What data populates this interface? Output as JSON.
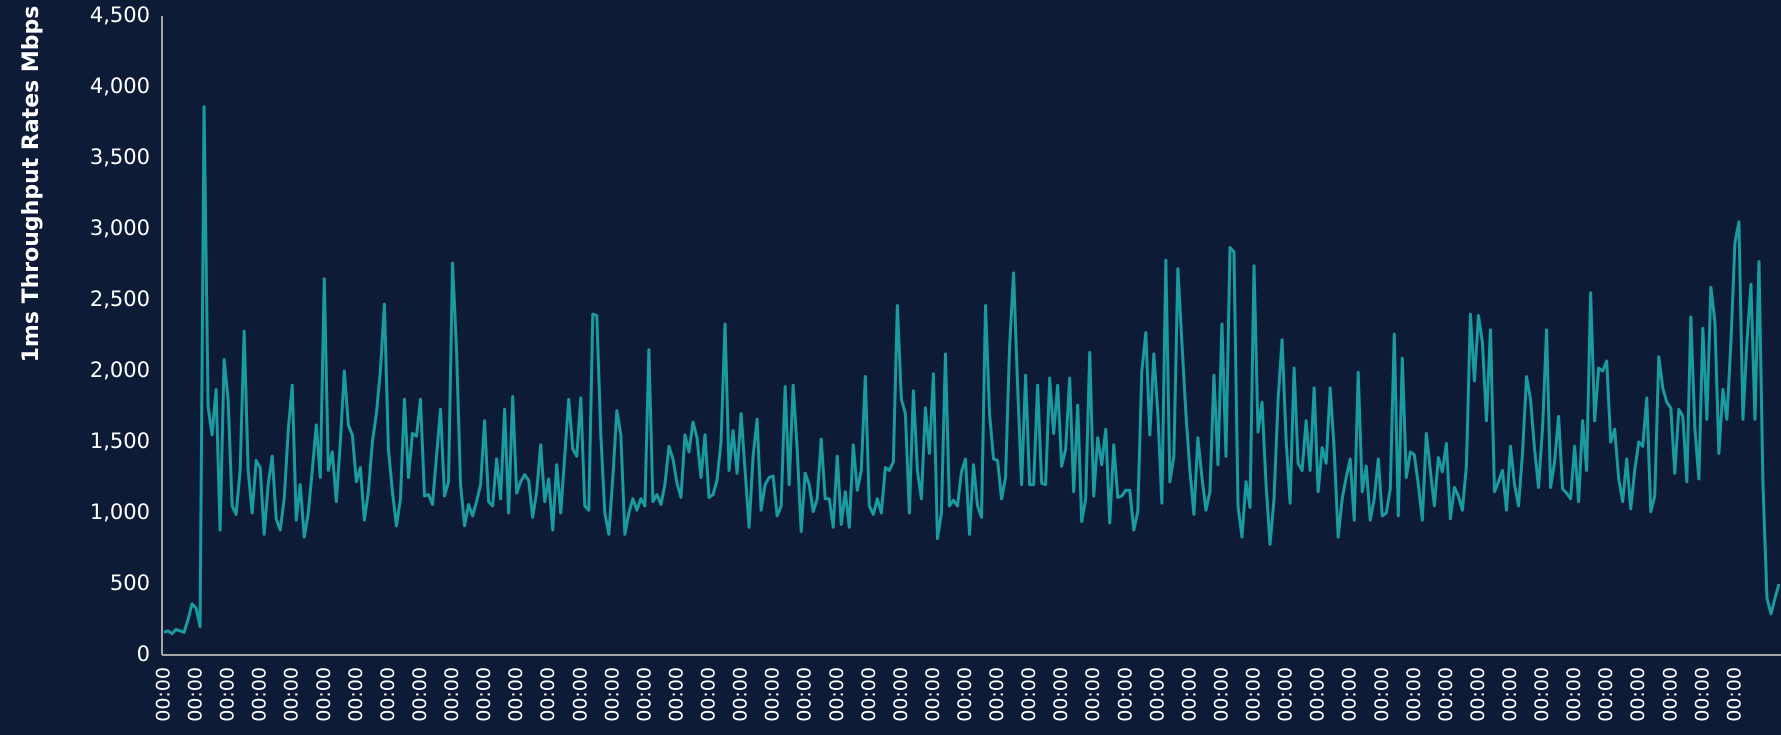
{
  "chart_data": {
    "type": "line",
    "y_label": "1ms Throughput Rates Mbps",
    "color": "#1a9ba0",
    "ylim": [
      0,
      4500
    ],
    "yticks": [
      0,
      500,
      {
        "value": 1000,
        "label": "1,000"
      },
      {
        "value": 1500,
        "label": "1,500"
      },
      {
        "value": 2000,
        "label": "2,000"
      },
      {
        "value": 2500,
        "label": "2,500"
      },
      {
        "value": 3000,
        "label": "3,000"
      },
      {
        "value": 3500,
        "label": "3,500"
      },
      {
        "value": 4000,
        "label": "4,000"
      },
      {
        "value": 4500,
        "label": "4,500"
      }
    ],
    "categories": [
      "00:00",
      null,
      null,
      null,
      null,
      null,
      null,
      null,
      "00:00",
      null,
      null,
      null,
      null,
      null,
      null,
      null,
      "00:00",
      null,
      null,
      null,
      null,
      null,
      null,
      null,
      "00:00",
      null,
      null,
      null,
      null,
      null,
      null,
      null,
      "00:00",
      null,
      null,
      null,
      null,
      null,
      null,
      null,
      "00:00",
      null,
      null,
      null,
      null,
      null,
      null,
      null,
      "00:00",
      null,
      null,
      null,
      null,
      null,
      null,
      null,
      "00:00",
      null,
      null,
      null,
      null,
      null,
      null,
      null,
      "00:00",
      null,
      null,
      null,
      null,
      null,
      null,
      null,
      "00:00",
      null,
      null,
      null,
      null,
      null,
      null,
      null,
      "00:00",
      null,
      null,
      null,
      null,
      null,
      null,
      null,
      "00:00",
      null,
      null,
      null,
      null,
      null,
      null,
      null,
      "00:00",
      null,
      null,
      null,
      null,
      null,
      null,
      null,
      "00:00",
      null,
      null,
      null,
      null,
      null,
      null,
      null,
      "00:00",
      null,
      null,
      null,
      null,
      null,
      null,
      null,
      "00:00",
      null,
      null,
      null,
      null,
      null,
      null,
      null,
      "00:00",
      null,
      null,
      null,
      null,
      null,
      null,
      null,
      "00:00",
      null,
      null,
      null,
      null,
      null,
      null,
      null,
      "00:00",
      null,
      null,
      null,
      null,
      null,
      null,
      null,
      "00:00",
      null,
      null,
      null,
      null,
      null,
      null,
      null,
      "00:00",
      null,
      null,
      null,
      null,
      null,
      null,
      null,
      "00:00",
      null,
      null,
      null,
      null,
      null,
      null,
      null,
      "00:00",
      null,
      null,
      null,
      null,
      null,
      null,
      null,
      "00:00",
      null,
      null,
      null,
      null,
      null,
      null,
      null,
      "00:00",
      null,
      null,
      null,
      null,
      null,
      null,
      null,
      "00:00",
      null,
      null,
      null,
      null,
      null,
      null,
      null,
      "00:00",
      null,
      null,
      null,
      null,
      null,
      null,
      null,
      "00:00",
      null,
      null,
      null,
      null,
      null,
      null,
      null,
      "00:00",
      null,
      null,
      null,
      null,
      null,
      null,
      null,
      "00:00",
      null,
      null,
      null,
      null,
      null,
      null,
      null,
      "00:00",
      null,
      null,
      null,
      null,
      null,
      null,
      null,
      "00:00",
      null,
      null,
      null,
      null,
      null,
      null,
      null,
      "00:00",
      null,
      null,
      null,
      null,
      null,
      null,
      null,
      "00:00",
      null,
      null,
      null,
      null,
      null,
      null,
      null,
      "00:00",
      null,
      null,
      null,
      null,
      null,
      null,
      null,
      "00:00",
      null,
      null,
      null,
      null,
      null,
      null,
      null,
      "00:00",
      null,
      null,
      null,
      null,
      null,
      null,
      null,
      "00:00",
      null,
      null,
      null,
      null,
      null,
      null,
      null,
      "00:00",
      null,
      null,
      null,
      null,
      null,
      null,
      null,
      "00:00",
      null,
      null,
      null,
      null,
      null,
      null,
      null,
      "00:00",
      null,
      null,
      null,
      null,
      null,
      null,
      null,
      "00:00",
      null,
      null,
      null,
      null,
      null,
      null,
      null,
      "00:00",
      null,
      null,
      null,
      null,
      null,
      null,
      null,
      "00:00",
      null,
      null,
      null,
      null,
      null,
      null,
      null,
      "00:00",
      null,
      null,
      null,
      null,
      null,
      null,
      null,
      "00:00",
      null,
      null,
      null,
      null,
      null,
      null,
      null,
      "00:00",
      null,
      null,
      null,
      null,
      null,
      null,
      null,
      "00:00",
      null,
      null,
      null,
      null,
      null,
      null,
      null,
      "00:00",
      null,
      null,
      null,
      null,
      null,
      null,
      null,
      "00:00",
      null,
      null,
      null,
      null,
      null,
      null,
      null,
      null,
      null,
      null,
      null
    ],
    "values": [
      160,
      170,
      150,
      180,
      170,
      160,
      250,
      360,
      330,
      200,
      3860,
      1750,
      1550,
      1870,
      880,
      2080,
      1800,
      1050,
      990,
      1300,
      2280,
      1300,
      1000,
      1370,
      1320,
      850,
      1200,
      1400,
      960,
      880,
      1100,
      1580,
      1900,
      950,
      1200,
      830,
      1000,
      1300,
      1620,
      1250,
      2650,
      1300,
      1430,
      1080,
      1500,
      2000,
      1620,
      1550,
      1220,
      1320,
      950,
      1150,
      1500,
      1700,
      2000,
      2470,
      1450,
      1150,
      910,
      1100,
      1800,
      1250,
      1560,
      1540,
      1800,
      1120,
      1130,
      1060,
      1400,
      1730,
      1120,
      1220,
      2760,
      2150,
      1200,
      910,
      1060,
      980,
      1080,
      1200,
      1650,
      1080,
      1050,
      1380,
      1100,
      1730,
      1000,
      1820,
      1140,
      1220,
      1270,
      1230,
      970,
      1150,
      1480,
      1080,
      1240,
      880,
      1340,
      1000,
      1400,
      1800,
      1450,
      1400,
      1810,
      1050,
      1020,
      2400,
      2390,
      1550,
      1000,
      850,
      1250,
      1720,
      1550,
      850,
      1000,
      1100,
      1020,
      1100,
      1050,
      2150,
      1080,
      1130,
      1060,
      1200,
      1470,
      1380,
      1210,
      1110,
      1550,
      1430,
      1640,
      1530,
      1250,
      1550,
      1110,
      1130,
      1230,
      1500,
      2330,
      1300,
      1580,
      1280,
      1700,
      1300,
      900,
      1400,
      1660,
      1020,
      1200,
      1250,
      1260,
      980,
      1050,
      1890,
      1200,
      1900,
      1450,
      870,
      1280,
      1200,
      1010,
      1100,
      1520,
      1100,
      1100,
      900,
      1400,
      920,
      1150,
      900,
      1480,
      1160,
      1300,
      1960,
      1050,
      990,
      1100,
      1000,
      1320,
      1300,
      1360,
      2460,
      1800,
      1700,
      1000,
      1860,
      1300,
      1100,
      1740,
      1420,
      1980,
      820,
      1000,
      2120,
      1050,
      1090,
      1050,
      1290,
      1380,
      850,
      1340,
      1050,
      970,
      2460,
      1700,
      1380,
      1370,
      1100,
      1250,
      2170,
      2690,
      1900,
      1200,
      1970,
      1200,
      1200,
      1900,
      1210,
      1200,
      1950,
      1560,
      1900,
      1330,
      1450,
      1950,
      1150,
      1760,
      940,
      1100,
      2130,
      1120,
      1530,
      1340,
      1590,
      930,
      1480,
      1110,
      1120,
      1160,
      1160,
      880,
      1010,
      2000,
      2270,
      1550,
      2120,
      1700,
      1070,
      2780,
      1220,
      1400,
      2720,
      2200,
      1700,
      1300,
      990,
      1530,
      1250,
      1020,
      1150,
      1970,
      1340,
      2330,
      1400,
      2870,
      2840,
      1050,
      830,
      1220,
      1040,
      2740,
      1570,
      1780,
      1200,
      780,
      1100,
      1800,
      2220,
      1520,
      1070,
      2020,
      1350,
      1300,
      1650,
      1300,
      1880,
      1150,
      1460,
      1350,
      1880,
      1450,
      830,
      1100,
      1250,
      1380,
      950,
      1990,
      1150,
      1330,
      950,
      1100,
      1380,
      980,
      1000,
      1170,
      2260,
      980,
      2090,
      1250,
      1430,
      1410,
      1200,
      950,
      1560,
      1300,
      1050,
      1390,
      1290,
      1490,
      960,
      1180,
      1120,
      1020,
      1330,
      2400,
      1930,
      2390,
      2200,
      1650,
      2290,
      1150,
      1220,
      1300,
      1020,
      1470,
      1200,
      1050,
      1420,
      1960,
      1800,
      1450,
      1180,
      1600,
      2290,
      1180,
      1360,
      1680,
      1170,
      1140,
      1100,
      1470,
      1080,
      1650,
      1300,
      2550,
      1650,
      2020,
      2000,
      2070,
      1500,
      1590,
      1240,
      1080,
      1380,
      1030,
      1300,
      1500,
      1470,
      1810,
      1010,
      1120,
      2100,
      1880,
      1780,
      1740,
      1280,
      1730,
      1680,
      1220,
      2380,
      1600,
      1240,
      2300,
      1660,
      2590,
      2350,
      1420,
      1870,
      1660,
      2200,
      2900,
      3050,
      1660,
      2200,
      2610,
      1660,
      2770,
      1200,
      400,
      290,
      400,
      500
    ]
  }
}
